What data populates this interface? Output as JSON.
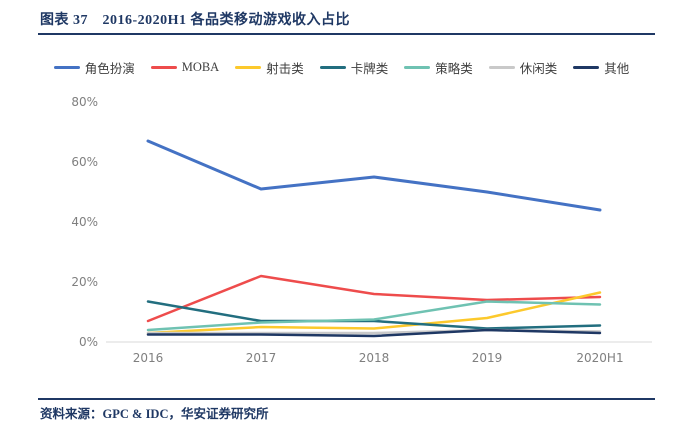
{
  "header": {
    "title": "图表 37　2016-2020H1 各品类移动游戏收入占比"
  },
  "footer": {
    "source_label": "资料来源：",
    "source_text": "GPC & IDC，华安证券研究所"
  },
  "colors": {
    "accent_navy": "#1f3864",
    "axis_text": "#7f7f7f",
    "axis_line": "#d9d9d9"
  },
  "chart_data": {
    "type": "line",
    "title": "2016-2020H1 各品类移动游戏收入占比",
    "categories": [
      "2016",
      "2017",
      "2018",
      "2019",
      "2020H1"
    ],
    "series": [
      {
        "name": "角色扮演",
        "color": "#4472c4",
        "values": [
          67,
          51,
          55,
          50,
          44
        ]
      },
      {
        "name": "MOBA",
        "color": "#ee4c4c",
        "values": [
          7,
          22,
          16,
          14,
          15
        ]
      },
      {
        "name": "射击类",
        "color": "#fcc92c",
        "values": [
          3,
          5,
          4.5,
          8,
          16.5
        ]
      },
      {
        "name": "卡牌类",
        "color": "#226e7f",
        "values": [
          13.5,
          7,
          7,
          4.5,
          5.5
        ]
      },
      {
        "name": "策略类",
        "color": "#6fc2b2",
        "values": [
          4,
          6.5,
          7.5,
          13.5,
          12.5
        ]
      },
      {
        "name": "休闲类",
        "color": "#c9c9c9",
        "values": [
          3,
          3,
          3,
          4,
          3.5
        ]
      },
      {
        "name": "其他",
        "color": "#1f3864",
        "values": [
          2.5,
          2.5,
          2,
          4,
          3
        ]
      }
    ],
    "ylim": [
      0,
      80
    ],
    "yticks": [
      0,
      20,
      40,
      60,
      80
    ],
    "ytick_suffix": "%",
    "legend_position": "top",
    "grid": false
  }
}
